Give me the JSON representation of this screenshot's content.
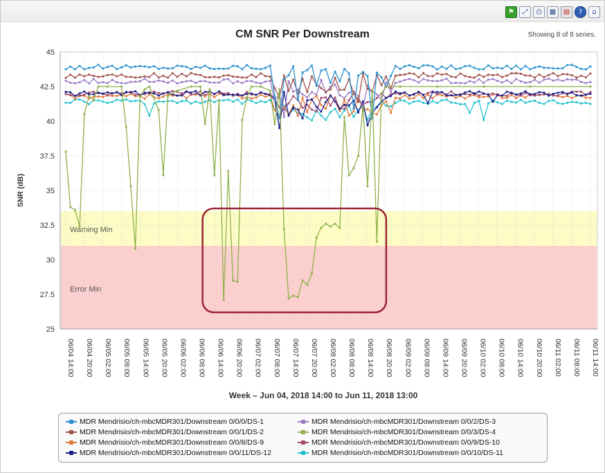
{
  "toolbar": {
    "icons": [
      "flag-icon",
      "expand-icon",
      "print-icon",
      "excel-export-icon",
      "pdf-export-icon",
      "help-icon",
      "home-icon"
    ]
  },
  "chart_data": {
    "type": "line",
    "title": "CM SNR Per Downstream",
    "series_count_text": "Showing 8 of 8 series.",
    "xlabel": "Week – Jun 04, 2018 14:00 to Jun 11, 2018 13:00",
    "ylabel": "SNR (dB)",
    "ylim": [
      25,
      45
    ],
    "yticks": [
      "45",
      "42.5",
      "40",
      "37.5",
      "35",
      "32.5",
      "30",
      "27.5",
      "25"
    ],
    "xticks": [
      "06/04 14:00",
      "06/04 20:00",
      "06/05 02:00",
      "06/05 08:00",
      "06/05 14:00",
      "06/05 20:00",
      "06/06 02:00",
      "06/06 08:00",
      "06/06 14:00",
      "06/06 20:00",
      "06/07 02:00",
      "06/07 08:00",
      "06/07 14:00",
      "06/07 20:00",
      "06/08 02:00",
      "06/08 08:00",
      "06/08 14:00",
      "06/08 20:00",
      "06/09 02:00",
      "06/09 08:00",
      "06/09 14:00",
      "06/09 20:00",
      "06/10 02:00",
      "06/10 08:00",
      "06/10 14:00",
      "06/10 20:00",
      "06/11 02:00",
      "06/11 08:00",
      "06/11 14:00"
    ],
    "grid": true,
    "bands": [
      {
        "label": "Warning Min",
        "from": 31,
        "to": 33.5,
        "color": "#fcfcc4"
      },
      {
        "label": "Error Min",
        "from": 25,
        "to": 31,
        "color": "#fccfcf"
      }
    ],
    "annotation": {
      "shape": "rounded-rectangle",
      "color": "#9b2335",
      "x_range": [
        "06/06 08:00",
        "06/08 20:00"
      ],
      "y_range": [
        26.2,
        33.7
      ]
    },
    "legend_position": "bottom",
    "series": [
      {
        "name": "MDR Mendrisio/ch-mbcMDR301/Downstream 0/0/0/DS-1",
        "color": "#2a8fd0",
        "base": 43.9
      },
      {
        "name": "MDR Mendrisio/ch-mbcMDR301/Downstream 0/0/2/DS-3",
        "color": "#9a7cc4",
        "base": 42.9
      },
      {
        "name": "MDR Mendrisio/ch-mbcMDR301/Downstream 0/0/1/DS-2",
        "color": "#a0524d",
        "base": 43.3
      },
      {
        "name": "MDR Mendrisio/ch-mbcMDR301/Downstream 0/0/3/DS-4",
        "color": "#8fb04a",
        "base": 42.4
      },
      {
        "name": "MDR Mendrisio/ch-mbcMDR301/Downstream 0/0/8/DS-9",
        "color": "#e07a3a",
        "base": 41.8
      },
      {
        "name": "MDR Mendrisio/ch-mbcMDR301/Downstream 0/0/9/DS-10",
        "color": "#9e4a6e",
        "base": 42.0
      },
      {
        "name": "MDR Mendrisio/ch-mbcMDR301/Downstream 0/0/11/DS-12",
        "color": "#1c1f8a",
        "base": 42.0
      },
      {
        "name": "MDR Mendrisio/ch-mbcMDR301/Downstream 0/0/10/DS-11",
        "color": "#22c3cf",
        "base": 41.4
      }
    ],
    "ds4_points": [
      [
        0,
        37.8
      ],
      [
        1,
        33.8
      ],
      [
        2,
        33.6
      ],
      [
        3,
        32.4
      ],
      [
        4,
        40.5
      ],
      [
        5,
        41.8
      ],
      [
        6,
        41.5
      ],
      [
        7,
        42.5
      ],
      [
        9,
        42.5
      ],
      [
        12,
        42.5
      ],
      [
        13,
        39.6
      ],
      [
        14,
        35.3
      ],
      [
        15,
        30.8
      ],
      [
        16,
        41.8
      ],
      [
        17,
        42.3
      ],
      [
        18,
        42.5
      ],
      [
        20,
        40.8
      ],
      [
        21,
        36.1
      ],
      [
        22,
        41.8
      ],
      [
        24,
        42.2
      ],
      [
        27,
        42.5
      ],
      [
        29,
        42.5
      ],
      [
        30,
        39.8
      ],
      [
        31,
        42.3
      ],
      [
        32,
        36.1
      ],
      [
        33,
        41.5
      ],
      [
        34,
        27.1
      ],
      [
        35,
        36.4
      ],
      [
        36,
        28.5
      ],
      [
        37,
        28.4
      ],
      [
        38,
        40.1
      ],
      [
        39,
        41.7
      ],
      [
        40,
        42.5
      ],
      [
        42,
        42.5
      ],
      [
        44,
        42.2
      ],
      [
        45,
        39.8
      ],
      [
        46,
        42.3
      ],
      [
        47,
        32.2
      ],
      [
        48,
        27.2
      ],
      [
        49,
        27.4
      ],
      [
        50,
        27.3
      ],
      [
        51,
        28.5
      ],
      [
        52,
        28.2
      ],
      [
        53,
        29.0
      ],
      [
        54,
        31.6
      ],
      [
        55,
        32.3
      ],
      [
        56,
        32.6
      ],
      [
        57,
        32.4
      ],
      [
        58,
        32.6
      ],
      [
        59,
        32.3
      ],
      [
        60,
        40.3
      ],
      [
        61,
        36.1
      ],
      [
        62,
        36.6
      ],
      [
        63,
        37.5
      ],
      [
        64,
        41.0
      ],
      [
        65,
        35.3
      ],
      [
        66,
        42.2
      ],
      [
        67,
        31.3
      ],
      [
        68,
        42.0
      ],
      [
        69,
        42.5
      ],
      [
        72,
        42.5
      ],
      [
        80,
        42.5
      ],
      [
        90,
        42.5
      ],
      [
        100,
        42.5
      ],
      [
        113,
        42.5
      ]
    ]
  },
  "legend": {
    "entries": [
      {
        "text": "MDR Mendrisio/ch-mbcMDR301/Downstream 0/0/0/DS-1",
        "color": "#2a8fd0"
      },
      {
        "text": "MDR Mendrisio/ch-mbcMDR301/Downstream 0/0/2/DS-3",
        "color": "#9a7cc4"
      },
      {
        "text": "MDR Mendrisio/ch-mbcMDR301/Downstream 0/0/1/DS-2",
        "color": "#a0524d"
      },
      {
        "text": "MDR Mendrisio/ch-mbcMDR301/Downstream 0/0/3/DS-4",
        "color": "#8fb04a"
      },
      {
        "text": "MDR Mendrisio/ch-mbcMDR301/Downstream 0/0/8/DS-9",
        "color": "#e07a3a"
      },
      {
        "text": "MDR Mendrisio/ch-mbcMDR301/Downstream 0/0/9/DS-10",
        "color": "#9e4a6e"
      },
      {
        "text": "MDR Mendrisio/ch-mbcMDR301/Downstream 0/0/11/DS-12",
        "color": "#1c1f8a"
      },
      {
        "text": "MDR Mendrisio/ch-mbcMDR301/Downstream 0/0/10/DS-11",
        "color": "#22c3cf"
      }
    ]
  }
}
